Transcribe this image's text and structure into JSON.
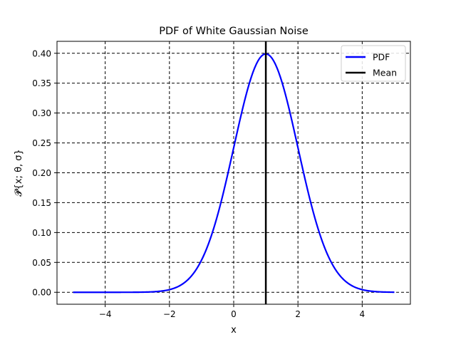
{
  "chart_data": {
    "type": "line",
    "title": "PDF of White Gaussian Noise",
    "xlabel": "x",
    "ylabel": "𝓟{x; θ, σ}",
    "xlim": [
      -5.5,
      5.5
    ],
    "ylim": [
      -0.02,
      0.42
    ],
    "x_ticks": [
      -4,
      -2,
      0,
      2,
      4
    ],
    "x_tick_labels": [
      "−4",
      "−2",
      "0",
      "2",
      "4"
    ],
    "y_ticks": [
      0.0,
      0.05,
      0.1,
      0.15,
      0.2,
      0.25,
      0.3,
      0.35,
      0.4
    ],
    "y_tick_labels": [
      "0.00",
      "0.05",
      "0.10",
      "0.15",
      "0.20",
      "0.25",
      "0.30",
      "0.35",
      "0.40"
    ],
    "grid": true,
    "grid_style": "dashed",
    "legend_position": "top-right",
    "series": [
      {
        "name": "PDF",
        "color": "#0000ff",
        "x": [
          -5.0,
          -4.5,
          -4.0,
          -3.5,
          -3.0,
          -2.5,
          -2.0,
          -1.5,
          -1.0,
          -0.5,
          0.0,
          0.25,
          0.5,
          0.75,
          1.0,
          1.25,
          1.5,
          1.75,
          2.0,
          2.5,
          3.0,
          3.5,
          4.0,
          4.5,
          5.0
        ],
        "y": [
          0.0,
          0.0,
          0.0,
          0.0,
          0.0001,
          0.0009,
          0.0044,
          0.0175,
          0.054,
          0.1295,
          0.242,
          0.3011,
          0.3521,
          0.3867,
          0.3989,
          0.3867,
          0.3521,
          0.3011,
          0.242,
          0.1295,
          0.054,
          0.0175,
          0.0044,
          0.0009,
          0.0001
        ]
      },
      {
        "name": "Mean",
        "color": "#000000",
        "type": "vertical-line",
        "x_value": 1.0
      }
    ]
  }
}
